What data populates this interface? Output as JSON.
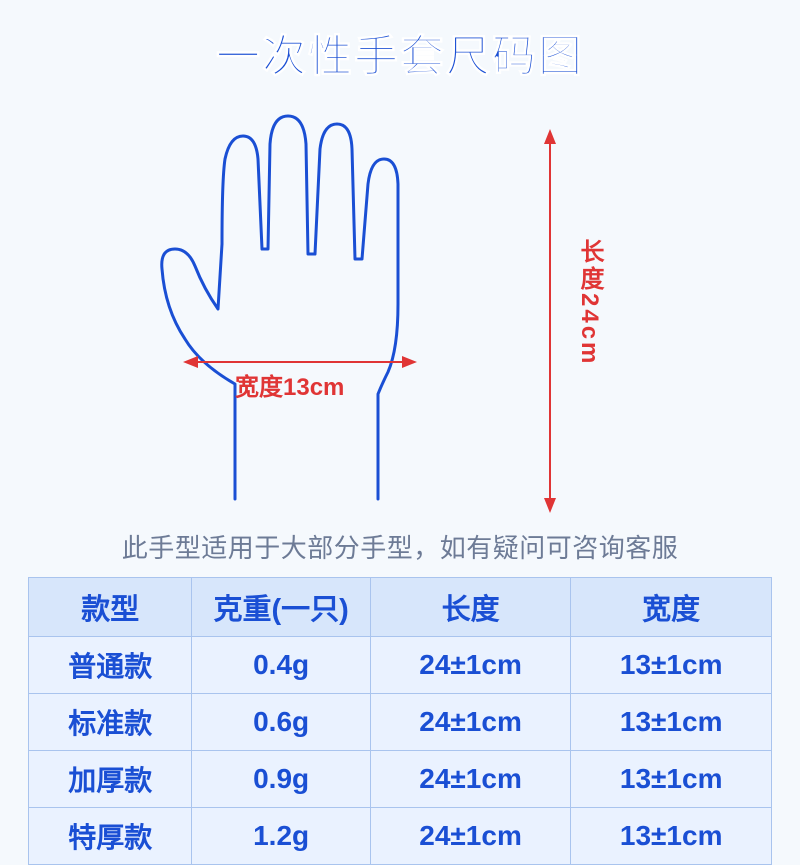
{
  "title": "一次性手套尺码图",
  "diagram": {
    "hand_stroke": "#1a4fd4",
    "hand_stroke_width": 3,
    "measure_color": "#e03535",
    "width_label": "宽度13cm",
    "length_label": "长度24cm"
  },
  "note": "此手型适用于大部分手型，如有疑问可咨询客服",
  "table": {
    "header_bg": "#d7e6fb",
    "cell_bg": "#eaf2ff",
    "border_color": "#a9c4ee",
    "text_color": "#1a4fd4",
    "columns": [
      "款型",
      "克重(一只)",
      "长度",
      "宽度"
    ],
    "rows": [
      [
        "普通款",
        "0.4g",
        "24±1cm",
        "13±1cm"
      ],
      [
        "标准款",
        "0.6g",
        "24±1cm",
        "13±1cm"
      ],
      [
        "加厚款",
        "0.9g",
        "24±1cm",
        "13±1cm"
      ],
      [
        "特厚款",
        "1.2g",
        "24±1cm",
        "13±1cm"
      ]
    ]
  }
}
